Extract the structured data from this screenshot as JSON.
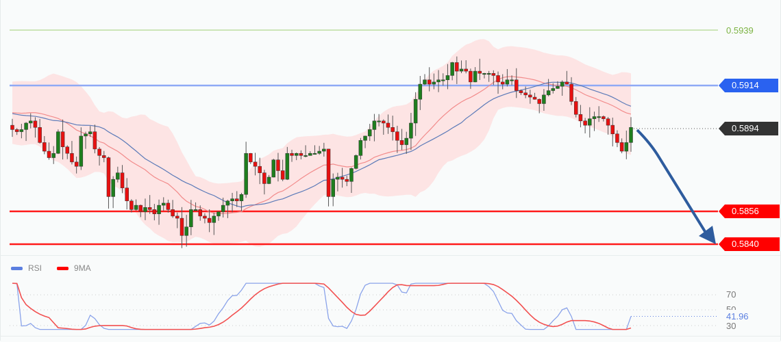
{
  "chart_data": {
    "type": "candlestick",
    "title": "",
    "price_levels": [
      {
        "name": "target-high",
        "value": 0.5939,
        "color": "#7cb342",
        "label": "0.5939",
        "style": "line-light"
      },
      {
        "name": "resistance",
        "value": 0.5914,
        "color": "#2a62f0",
        "label": "0.5914",
        "style": "tag"
      },
      {
        "name": "current-price",
        "value": 0.5894,
        "color": "#333333",
        "label": "0.5894",
        "style": "tag-dotted"
      },
      {
        "name": "support-1",
        "value": 0.5856,
        "color": "#ff0000",
        "label": "0.5856",
        "style": "tag"
      },
      {
        "name": "support-2",
        "value": 0.584,
        "color": "#ff0000",
        "label": "0.5840",
        "style": "tag"
      }
    ],
    "forecast_arrow": {
      "from": 0.5894,
      "to": 0.584,
      "direction": "down",
      "color": "#2e5c9e"
    },
    "indicators": [
      "Bollinger Bands",
      "SMA (red)",
      "SMA (blue)"
    ],
    "ohlc_close_path": [
      0.5893,
      0.5892,
      0.5893,
      0.5896,
      0.5897,
      0.5894,
      0.5887,
      0.5883,
      0.588,
      0.5882,
      0.5892,
      0.5885,
      0.5882,
      0.5878,
      0.5876,
      0.589,
      0.5891,
      0.5892,
      0.5884,
      0.5881,
      0.588,
      0.5862,
      0.587,
      0.5873,
      0.5866,
      0.586,
      0.5856,
      0.5858,
      0.5855,
      0.5857,
      0.5856,
      0.5854,
      0.5858,
      0.5859,
      0.5856,
      0.5853,
      0.5852,
      0.5844,
      0.5848,
      0.5856,
      0.5856,
      0.5853,
      0.5852,
      0.585,
      0.5853,
      0.5855,
      0.5858,
      0.586,
      0.5861,
      0.586,
      0.5863,
      0.5882,
      0.5878,
      0.5876,
      0.5873,
      0.5868,
      0.5871,
      0.5879,
      0.5874,
      0.587,
      0.5882,
      0.5881,
      0.5882,
      0.5881,
      0.5881,
      0.5882,
      0.5882,
      0.5883,
      0.5884,
      0.5862,
      0.587,
      0.5871,
      0.587,
      0.5869,
      0.5875,
      0.5881,
      0.5888,
      0.589,
      0.5893,
      0.5897,
      0.5897,
      0.5896,
      0.5894,
      0.5892,
      0.5888,
      0.5886,
      0.5889,
      0.5896,
      0.5907,
      0.5914,
      0.5916,
      0.5914,
      0.5915,
      0.5916,
      0.5916,
      0.5918,
      0.5924,
      0.592,
      0.5921,
      0.592,
      0.5915,
      0.592,
      0.5919,
      0.5919,
      0.5919,
      0.5918,
      0.5915,
      0.5914,
      0.5916,
      0.5916,
      0.5911,
      0.591,
      0.5909,
      0.5908,
      0.5907,
      0.5905,
      0.5909,
      0.5911,
      0.5912,
      0.5913,
      0.5915,
      0.5914,
      0.5906,
      0.59,
      0.5897,
      0.5895,
      0.5898,
      0.5899,
      0.5899,
      0.5898,
      0.5895,
      0.5891,
      0.5887,
      0.5883,
      0.5887,
      0.5894
    ],
    "rsi": {
      "current": 41.96,
      "levels": [
        70,
        50,
        30
      ],
      "series": [
        {
          "name": "RSI",
          "color": "#5b7fe0"
        },
        {
          "name": "9MA",
          "color": "#ff1a1a"
        }
      ]
    }
  },
  "labels": {
    "level_0": "0.5939",
    "level_1": "0.5914",
    "level_2": "0.5894",
    "level_3": "0.5856",
    "level_4": "0.5840"
  },
  "rsi_panel": {
    "legend": [
      {
        "label": "RSI",
        "color": "#5b7fe0"
      },
      {
        "label": "9MA",
        "color": "#ff1a1a"
      }
    ],
    "axis": {
      "l70": "70",
      "l50": "50",
      "l30": "30"
    },
    "current_value": "41.96"
  }
}
